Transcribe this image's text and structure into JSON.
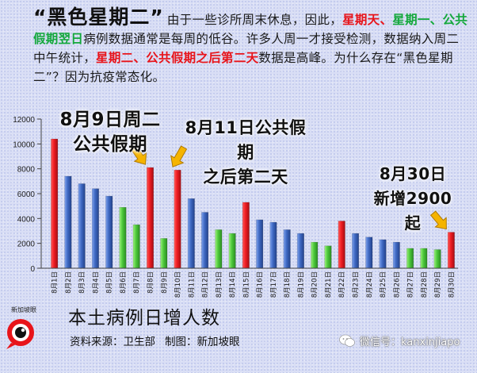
{
  "intro": {
    "headline": "“黑色星期二”",
    "p1": "由于一些诊所周末休息，因此，",
    "r1": "星期天、",
    "g1": "星期一、公共假期翌日",
    "p2": "病例数据通常是每周的低谷。许多人周一才接受检测，数据纳入周二中午统计，",
    "r2": "星期二、公共假期之后第二天",
    "p3": "数据是高峰。为什么存在“黑色星期二”？因为抗疫常态化。"
  },
  "callouts": {
    "c1": "8月9日周二\n公共假期",
    "c2": "8月11日公共假期\n之后第二天",
    "c3": "8月30日\n新增2900起"
  },
  "footer": {
    "chart_title": "本土病例日增人数",
    "source": "资料来源：卫生部",
    "credit": "制图：新加坡眼",
    "logo_text": "新加坡眼",
    "wechat": "微信号：kanxinjiapo"
  },
  "colors": {
    "red": "#e8141a",
    "blue": "#3e68c2",
    "green": "#4cc83a"
  },
  "chart_data": {
    "type": "bar",
    "title": "本土病例日增人数",
    "categories": [
      "8月1日",
      "8月2日",
      "8月3日",
      "8月4日",
      "8月5日",
      "8月6日",
      "8月7日",
      "8月8日",
      "8月9日",
      "8月10日",
      "8月11日",
      "8月12日",
      "8月13日",
      "8月14日",
      "8月15日",
      "8月16日",
      "8月17日",
      "8月18日",
      "8月19日",
      "8月20日",
      "8月21日",
      "8月22日",
      "8月23日",
      "8月24日",
      "8月25日",
      "8月26日",
      "8月27日",
      "8月28日",
      "8月29日",
      "8月30日"
    ],
    "values": [
      10400,
      7400,
      6800,
      6400,
      5800,
      4900,
      3500,
      8100,
      2400,
      7900,
      5600,
      4500,
      3100,
      2800,
      5300,
      3900,
      3700,
      3100,
      2800,
      2100,
      1800,
      3800,
      2800,
      2500,
      2300,
      2100,
      1600,
      1600,
      1500,
      2900
    ],
    "bar_colors": [
      "red",
      "blue",
      "blue",
      "blue",
      "blue",
      "green",
      "green",
      "red",
      "green",
      "red",
      "blue",
      "blue",
      "green",
      "green",
      "red",
      "blue",
      "blue",
      "blue",
      "blue",
      "green",
      "green",
      "red",
      "blue",
      "blue",
      "blue",
      "blue",
      "green",
      "green",
      "green",
      "red"
    ],
    "yticks": [
      0,
      2000,
      4000,
      6000,
      8000,
      10000,
      12000
    ],
    "ylim": [
      0,
      12000
    ],
    "xlabel": "",
    "ylabel": "",
    "grid": false
  }
}
